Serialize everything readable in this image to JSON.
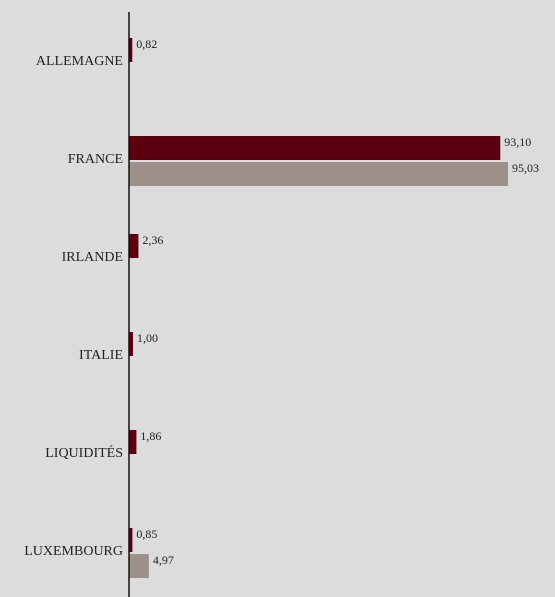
{
  "chart_data": {
    "type": "bar",
    "orientation": "horizontal",
    "categories": [
      "ALLEMAGNE",
      "FRANCE",
      "IRLANDE",
      "ITALIE",
      "LIQUIDITÉS",
      "LUXEMBOURG"
    ],
    "series": [
      {
        "values": [
          0.82,
          93.1,
          2.36,
          1.0,
          1.86,
          0.85
        ],
        "labels": [
          "0,82",
          "93,10",
          "2,36",
          "1,00",
          "1,86",
          "0,85"
        ],
        "color": "#5c0010"
      },
      {
        "values": [
          null,
          95.03,
          null,
          null,
          null,
          4.97
        ],
        "labels": [
          null,
          "95,03",
          null,
          null,
          null,
          "4,97"
        ],
        "color": "#9c9089"
      }
    ],
    "xlim": [
      0,
      100
    ],
    "grid": false,
    "axis_color": "#111111"
  }
}
